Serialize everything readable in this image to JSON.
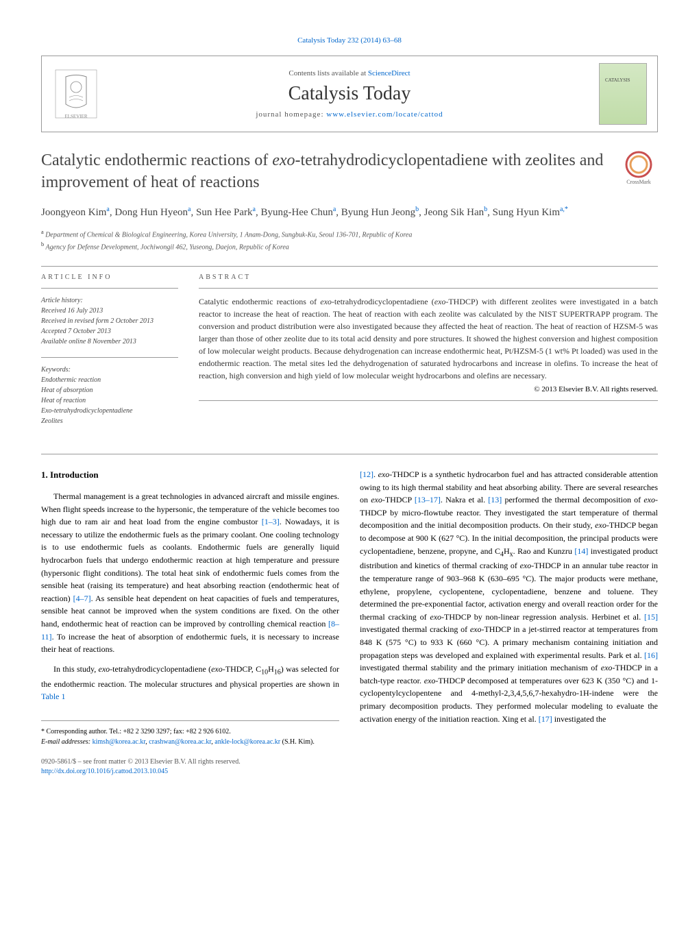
{
  "header": {
    "top_citation": "Catalysis Today 232 (2014) 63–68",
    "contents_line_prefix": "Contents lists available at ",
    "contents_link": "ScienceDirect",
    "journal_name": "Catalysis Today",
    "homepage_prefix": "journal homepage: ",
    "homepage_url": "www.elsevier.com/locate/cattod"
  },
  "title": {
    "html": "Catalytic endothermic reactions of <em>exo</em>-tetrahydrodicyclopentadiene with zeolites and improvement of heat of reactions"
  },
  "crossmark_label": "CrossMark",
  "authors_html": "Joongyeon Kim<sup>a</sup>, Dong Hun Hyeon<sup>a</sup>, Sun Hee Park<sup>a</sup>, Byung-Hee Chun<sup>a</sup>, Byung Hun Jeong<sup>b</sup>, Jeong Sik Han<sup>b</sup>, Sung Hyun Kim<sup>a,*</sup>",
  "affiliations": [
    {
      "sup": "a",
      "text": "Department of Chemical & Biological Engineering, Korea University, 1 Anam-Dong, Sungbuk-Ku, Seoul 136-701, Republic of Korea"
    },
    {
      "sup": "b",
      "text": "Agency for Defense Development, Jochiwongil 462, Yuseong, Daejon, Republic of Korea"
    }
  ],
  "article_info": {
    "heading": "ARTICLE INFO",
    "history_label": "Article history:",
    "history": [
      "Received 16 July 2013",
      "Received in revised form 2 October 2013",
      "Accepted 7 October 2013",
      "Available online 8 November 2013"
    ],
    "keywords_label": "Keywords:",
    "keywords": [
      "Endothermic reaction",
      "Heat of absorption",
      "Heat of reaction",
      "Exo-tetrahydrodicyclopentadiene",
      "Zeolites"
    ]
  },
  "abstract": {
    "heading": "ABSTRACT",
    "text_html": "Catalytic endothermic reactions of <em>exo</em>-tetrahydrodicyclopentadiene (<em>exo</em>-THDCP) with different zeolites were investigated in a batch reactor to increase the heat of reaction. The heat of reaction with each zeolite was calculated by the NIST SUPERTRAPP program. The conversion and product distribution were also investigated because they affected the heat of reaction. The heat of reaction of HZSM-5 was larger than those of other zeolite due to its total acid density and pore structures. It showed the highest conversion and highest composition of low molecular weight products. Because dehydrogenation can increase endothermic heat, Pt/HZSM-5 (1 wt% Pt loaded) was used in the endothermic reaction. The metal sites led the dehydrogenation of saturated hydrocarbons and increase in olefins. To increase the heat of reaction, high conversion and high yield of low molecular weight hydrocarbons and olefins are necessary.",
    "copyright": "© 2013 Elsevier B.V. All rights reserved."
  },
  "introduction": {
    "heading": "1. Introduction",
    "para1_html": "Thermal management is a great technologies in advanced aircraft and missile engines. When flight speeds increase to the hypersonic, the temperature of the vehicle becomes too high due to ram air and heat load from the engine combustor <span class=\"ref-link\">[1–3]</span>. Nowadays, it is necessary to utilize the endothermic fuels as the primary coolant. One cooling technology is to use endothermic fuels as coolants. Endothermic fuels are generally liquid hydrocarbon fuels that undergo endothermic reaction at high temperature and pressure (hypersonic flight conditions). The total heat sink of endothermic fuels comes from the sensible heat (raising its temperature) and heat absorbing reaction (endothermic heat of reaction) <span class=\"ref-link\">[4–7]</span>. As sensible heat dependent on heat capacities of fuels and temperatures, sensible heat cannot be improved when the system conditions are fixed. On the other hand, endothermic heat of reaction can be improved by controlling chemical reaction <span class=\"ref-link\">[8–11]</span>. To increase the heat of absorption of endothermic fuels, it is necessary to increase their heat of reactions.",
    "para2_html": "In this study, <em>exo</em>-tetrahydrodicyclopentadiene (<em>exo</em>-THDCP, C<sub>10</sub>H<sub>16</sub>) was selected for the endothermic reaction. The molecular structures and physical properties are shown in <span class=\"ref-link\">Table 1</span>",
    "para_col2_html": "<span class=\"ref-link\">[12]</span>. <em>exo</em>-THDCP is a synthetic hydrocarbon fuel and has attracted considerable attention owing to its high thermal stability and heat absorbing ability. There are several researches on <em>exo</em>-THDCP <span class=\"ref-link\">[13–17]</span>. Nakra et al. <span class=\"ref-link\">[13]</span> performed the thermal decomposition of <em>exo</em>-THDCP by micro-flowtube reactor. They investigated the start temperature of thermal decomposition and the initial decomposition products. On their study, <em>exo</em>-THDCP began to decompose at 900 K (627 °C). In the initial decomposition, the principal products were cyclopentadiene, benzene, propyne, and C<sub>4</sub>H<sub>x</sub>. Rao and Kunzru <span class=\"ref-link\">[14]</span> investigated product distribution and kinetics of thermal cracking of <em>exo</em>-THDCP in an annular tube reactor in the temperature range of 903–968 K (630–695 °C). The major products were methane, ethylene, propylene, cyclopentene, cyclopentadiene, benzene and toluene. They determined the pre-exponential factor, activation energy and overall reaction order for the thermal cracking of <em>exo</em>-THDCP by non-linear regression analysis. Herbinet et al. <span class=\"ref-link\">[15]</span> investigated thermal cracking of <em>exo</em>-THDCP in a jet-stirred reactor at temperatures from 848 K (575 °C) to 933 K (660 °C). A primary mechanism containing initiation and propagation steps was developed and explained with experimental results. Park et al. <span class=\"ref-link\">[16]</span> investigated thermal stability and the primary initiation mechanism of <em>exo</em>-THDCP in a batch-type reactor. <em>exo</em>-THDCP decomposed at temperatures over 623 K (350 °C) and 1-cyclopentylcyclopentene and 4-methyl-2,3,4,5,6,7-hexahydro-1H-indene were the primary decomposition products. They performed molecular modeling to evaluate the activation energy of the initiation reaction. Xing et al. <span class=\"ref-link\">[17]</span> investigated the"
  },
  "footnote": {
    "marker": "*",
    "corresponding": "Corresponding author. Tel.: +82 2 3290 3297; fax: +82 2 926 6102.",
    "email_label": "E-mail addresses: ",
    "emails": [
      "kimsh@korea.ac.kr",
      "crashwan@korea.ac.kr",
      "ankle-lock@korea.ac.kr"
    ],
    "email_attribution": " (S.H. Kim)."
  },
  "footer": {
    "issn_line": "0920-5861/$ – see front matter © 2013 Elsevier B.V. All rights reserved.",
    "doi": "http://dx.doi.org/10.1016/j.cattod.2013.10.045"
  },
  "style": {
    "link_color": "#0066cc",
    "text_color": "#333333",
    "heading_color": "#444444",
    "divider_color": "#999999",
    "cover_gradient_top": "#d4e8c4",
    "cover_gradient_bottom": "#c0dca8",
    "crossmark_ring_color": "#e8a05a",
    "crossmark_outer_color": "#c94f4f"
  }
}
